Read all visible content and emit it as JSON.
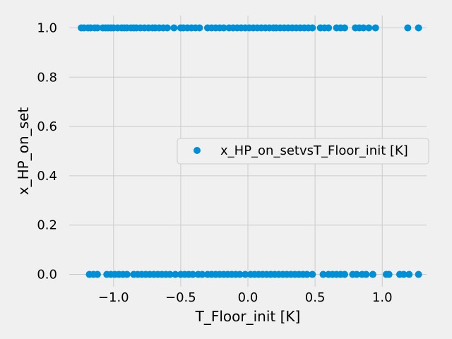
{
  "chart_data": {
    "type": "scatter",
    "xlabel": "T_Floor_init [K]",
    "ylabel": "x_HP_on_set",
    "xlim": [
      -1.33,
      1.33
    ],
    "ylim": [
      -0.05,
      1.05
    ],
    "xticks": [
      -1.0,
      -0.5,
      0.0,
      0.5,
      1.0
    ],
    "xtick_labels": [
      "−1.0",
      "−0.5",
      "0.0",
      "0.5",
      "1.0"
    ],
    "yticks": [
      0.0,
      0.2,
      0.4,
      0.6,
      0.8,
      1.0
    ],
    "ytick_labels": [
      "0.0",
      "0.2",
      "0.4",
      "0.6",
      "0.8",
      "1.0"
    ],
    "grid": true,
    "legend_position": "center-right",
    "series": [
      {
        "name": "x_HP_on_setvsT_Floor_init [K]",
        "color": "#008fd5",
        "marker": "circle",
        "points": [
          {
            "x": -1.24,
            "y": 1
          },
          {
            "x": -1.22,
            "y": 1
          },
          {
            "x": -1.19,
            "y": 1
          },
          {
            "x": -1.17,
            "y": 1
          },
          {
            "x": -1.14,
            "y": 1
          },
          {
            "x": -1.12,
            "y": 1
          },
          {
            "x": -1.08,
            "y": 1
          },
          {
            "x": -1.06,
            "y": 1
          },
          {
            "x": -1.04,
            "y": 1
          },
          {
            "x": -1.02,
            "y": 1
          },
          {
            "x": -1.0,
            "y": 1
          },
          {
            "x": -0.97,
            "y": 1
          },
          {
            "x": -0.94,
            "y": 1
          },
          {
            "x": -0.92,
            "y": 1
          },
          {
            "x": -0.9,
            "y": 1
          },
          {
            "x": -0.87,
            "y": 1
          },
          {
            "x": -0.85,
            "y": 1
          },
          {
            "x": -0.83,
            "y": 1
          },
          {
            "x": -0.8,
            "y": 1
          },
          {
            "x": -0.77,
            "y": 1
          },
          {
            "x": -0.74,
            "y": 1
          },
          {
            "x": -0.71,
            "y": 1
          },
          {
            "x": -0.69,
            "y": 1
          },
          {
            "x": -0.66,
            "y": 1
          },
          {
            "x": -0.63,
            "y": 1
          },
          {
            "x": -0.6,
            "y": 1
          },
          {
            "x": -0.55,
            "y": 1
          },
          {
            "x": -0.5,
            "y": 1
          },
          {
            "x": -0.48,
            "y": 1
          },
          {
            "x": -0.45,
            "y": 1
          },
          {
            "x": -0.42,
            "y": 1
          },
          {
            "x": -0.39,
            "y": 1
          },
          {
            "x": -0.36,
            "y": 1
          },
          {
            "x": -0.3,
            "y": 1
          },
          {
            "x": -0.27,
            "y": 1
          },
          {
            "x": -0.24,
            "y": 1
          },
          {
            "x": -0.21,
            "y": 1
          },
          {
            "x": -0.18,
            "y": 1
          },
          {
            "x": -0.14,
            "y": 1
          },
          {
            "x": -0.11,
            "y": 1
          },
          {
            "x": -0.08,
            "y": 1
          },
          {
            "x": -0.05,
            "y": 1
          },
          {
            "x": -0.02,
            "y": 1
          },
          {
            "x": 0.01,
            "y": 1
          },
          {
            "x": 0.04,
            "y": 1
          },
          {
            "x": 0.07,
            "y": 1
          },
          {
            "x": 0.1,
            "y": 1
          },
          {
            "x": 0.13,
            "y": 1
          },
          {
            "x": 0.16,
            "y": 1
          },
          {
            "x": 0.19,
            "y": 1
          },
          {
            "x": 0.21,
            "y": 1
          },
          {
            "x": 0.24,
            "y": 1
          },
          {
            "x": 0.27,
            "y": 1
          },
          {
            "x": 0.3,
            "y": 1
          },
          {
            "x": 0.33,
            "y": 1
          },
          {
            "x": 0.36,
            "y": 1
          },
          {
            "x": 0.39,
            "y": 1
          },
          {
            "x": 0.42,
            "y": 1
          },
          {
            "x": 0.45,
            "y": 1
          },
          {
            "x": 0.48,
            "y": 1
          },
          {
            "x": 0.54,
            "y": 1
          },
          {
            "x": 0.57,
            "y": 1
          },
          {
            "x": 0.6,
            "y": 1
          },
          {
            "x": 0.66,
            "y": 1
          },
          {
            "x": 0.69,
            "y": 1
          },
          {
            "x": 0.72,
            "y": 1
          },
          {
            "x": 0.8,
            "y": 1
          },
          {
            "x": 0.83,
            "y": 1
          },
          {
            "x": 0.86,
            "y": 1
          },
          {
            "x": 0.9,
            "y": 1
          },
          {
            "x": 0.95,
            "y": 1
          },
          {
            "x": 1.19,
            "y": 1
          },
          {
            "x": 1.27,
            "y": 1
          },
          {
            "x": -1.18,
            "y": 0
          },
          {
            "x": -1.15,
            "y": 0
          },
          {
            "x": -1.12,
            "y": 0
          },
          {
            "x": -1.05,
            "y": 0
          },
          {
            "x": -1.02,
            "y": 0
          },
          {
            "x": -0.99,
            "y": 0
          },
          {
            "x": -0.96,
            "y": 0
          },
          {
            "x": -0.93,
            "y": 0
          },
          {
            "x": -0.9,
            "y": 0
          },
          {
            "x": -0.85,
            "y": 0
          },
          {
            "x": -0.82,
            "y": 0
          },
          {
            "x": -0.79,
            "y": 0
          },
          {
            "x": -0.76,
            "y": 0
          },
          {
            "x": -0.73,
            "y": 0
          },
          {
            "x": -0.7,
            "y": 0
          },
          {
            "x": -0.67,
            "y": 0
          },
          {
            "x": -0.64,
            "y": 0
          },
          {
            "x": -0.61,
            "y": 0
          },
          {
            "x": -0.58,
            "y": 0
          },
          {
            "x": -0.54,
            "y": 0
          },
          {
            "x": -0.5,
            "y": 0
          },
          {
            "x": -0.47,
            "y": 0
          },
          {
            "x": -0.44,
            "y": 0
          },
          {
            "x": -0.41,
            "y": 0
          },
          {
            "x": -0.37,
            "y": 0
          },
          {
            "x": -0.34,
            "y": 0
          },
          {
            "x": -0.3,
            "y": 0
          },
          {
            "x": -0.27,
            "y": 0
          },
          {
            "x": -0.24,
            "y": 0
          },
          {
            "x": -0.21,
            "y": 0
          },
          {
            "x": -0.18,
            "y": 0
          },
          {
            "x": -0.15,
            "y": 0
          },
          {
            "x": -0.12,
            "y": 0
          },
          {
            "x": -0.09,
            "y": 0
          },
          {
            "x": -0.06,
            "y": 0
          },
          {
            "x": -0.02,
            "y": 0
          },
          {
            "x": 0.02,
            "y": 0
          },
          {
            "x": 0.05,
            "y": 0
          },
          {
            "x": 0.08,
            "y": 0
          },
          {
            "x": 0.11,
            "y": 0
          },
          {
            "x": 0.14,
            "y": 0
          },
          {
            "x": 0.17,
            "y": 0
          },
          {
            "x": 0.2,
            "y": 0
          },
          {
            "x": 0.23,
            "y": 0
          },
          {
            "x": 0.26,
            "y": 0
          },
          {
            "x": 0.29,
            "y": 0
          },
          {
            "x": 0.32,
            "y": 0
          },
          {
            "x": 0.35,
            "y": 0
          },
          {
            "x": 0.38,
            "y": 0
          },
          {
            "x": 0.41,
            "y": 0
          },
          {
            "x": 0.44,
            "y": 0
          },
          {
            "x": 0.48,
            "y": 0
          },
          {
            "x": 0.56,
            "y": 0
          },
          {
            "x": 0.6,
            "y": 0
          },
          {
            "x": 0.63,
            "y": 0
          },
          {
            "x": 0.66,
            "y": 0
          },
          {
            "x": 0.69,
            "y": 0
          },
          {
            "x": 0.72,
            "y": 0
          },
          {
            "x": 0.78,
            "y": 0
          },
          {
            "x": 0.81,
            "y": 0
          },
          {
            "x": 0.85,
            "y": 0
          },
          {
            "x": 0.88,
            "y": 0
          },
          {
            "x": 0.93,
            "y": 0
          },
          {
            "x": 1.03,
            "y": 0
          },
          {
            "x": 1.05,
            "y": 0
          },
          {
            "x": 1.13,
            "y": 0
          },
          {
            "x": 1.16,
            "y": 0
          },
          {
            "x": 1.2,
            "y": 0
          },
          {
            "x": 1.27,
            "y": 0
          }
        ]
      }
    ]
  }
}
